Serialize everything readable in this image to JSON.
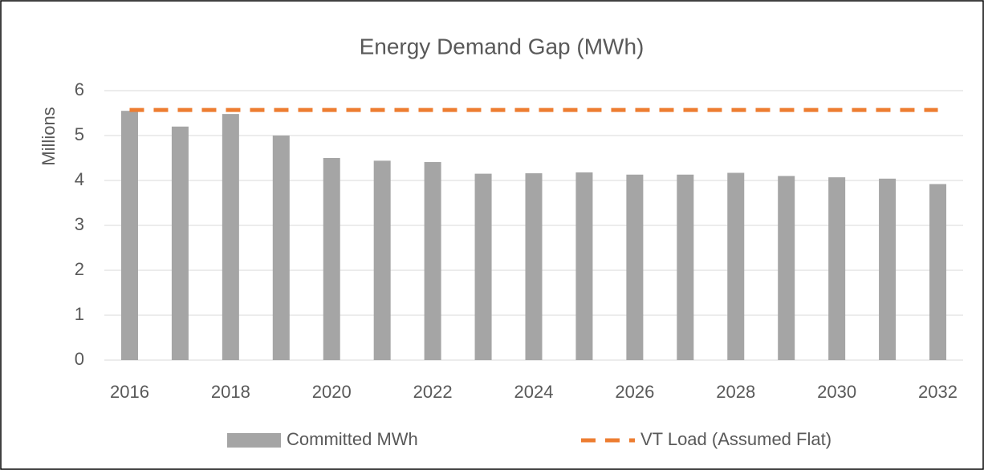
{
  "chart_data": {
    "type": "bar",
    "title": "Energy Demand Gap (MWh)",
    "y_label": "Millions",
    "categories": [
      "2016",
      null,
      "2018",
      null,
      "2020",
      null,
      "2022",
      null,
      "2024",
      null,
      "2026",
      null,
      "2028",
      null,
      "2030",
      null,
      "2032"
    ],
    "series": [
      {
        "name": "Committed MWh",
        "type": "bar",
        "color": "#a5a5a5",
        "values": [
          5.55,
          5.2,
          5.48,
          5.0,
          4.5,
          4.44,
          4.41,
          4.15,
          4.16,
          4.18,
          4.13,
          4.13,
          4.17,
          4.1,
          4.07,
          4.04,
          3.92
        ]
      },
      {
        "name": "VT Load (Assumed Flat)",
        "type": "line",
        "dashed": true,
        "color": "#ed7d31",
        "values": [
          5.57,
          5.57,
          5.57,
          5.57,
          5.57,
          5.57,
          5.57,
          5.57,
          5.57,
          5.57,
          5.57,
          5.57,
          5.57,
          5.57,
          5.57,
          5.57,
          5.57
        ]
      }
    ],
    "ylim": [
      0,
      6
    ],
    "yticks": [
      0,
      1,
      2,
      3,
      4,
      5,
      6
    ],
    "grid": true,
    "legend": "bottom"
  }
}
